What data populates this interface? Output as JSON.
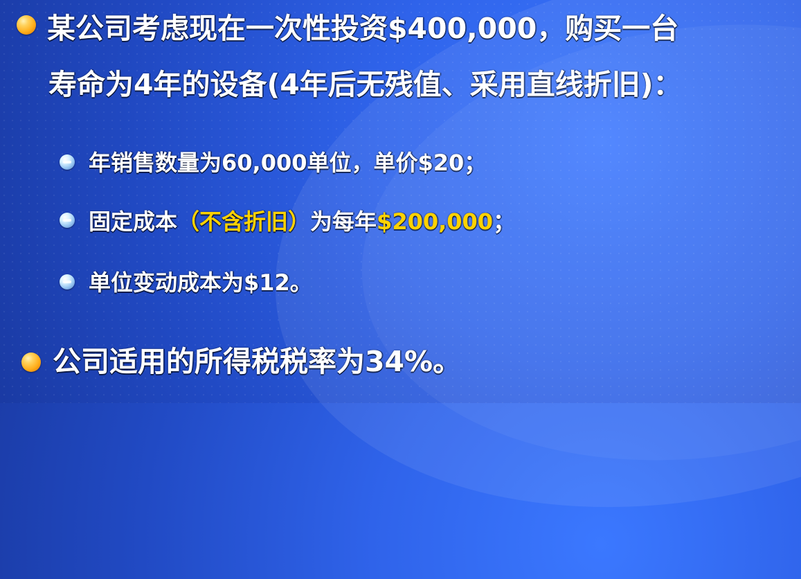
{
  "slide": {
    "bullet_1": {
      "line_1": "某公司考虑现在一次性投资$400,000，购买一台",
      "line_2": "寿命为4年的设备(4年后无残值、采用直线折旧)："
    },
    "sub_items": [
      {
        "text": "年销售数量为60,000单位，单价$20；"
      },
      {
        "prefix": "固定成本",
        "highlight_1": "（不含折旧）",
        "middle": "为每年",
        "highlight_2": "$200,000",
        "suffix": "；"
      },
      {
        "text": "单位变动成本为$12。"
      }
    ],
    "bullet_2": {
      "text": "公司适用的所得税税率为34%。"
    },
    "colors": {
      "highlight": "#ffd200",
      "text": "#ffffff",
      "background": "#2f63ea"
    },
    "icons": {
      "main_bullet": "orange-circle-bullet-icon",
      "sub_bullet": "blue-stack-bullet-icon"
    }
  }
}
